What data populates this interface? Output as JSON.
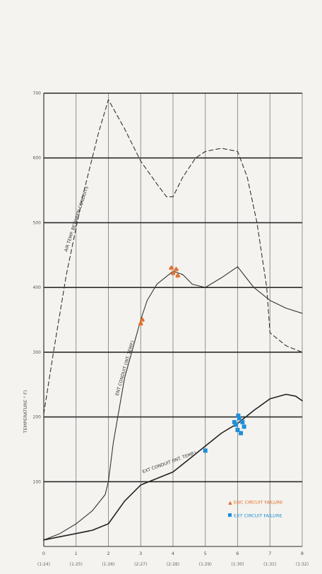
{
  "chart_data": {
    "type": "line",
    "ylabel": "TEMPERATURE ° F)",
    "ylim": [
      0,
      700
    ],
    "xlim": [
      0,
      8
    ],
    "grid": true,
    "y_ticks": [
      {
        "value": 0,
        "label": ""
      },
      {
        "value": 100,
        "label": "100"
      },
      {
        "value": 200,
        "label": "200"
      },
      {
        "value": 300,
        "label": "300"
      },
      {
        "value": 400,
        "label": "400"
      },
      {
        "value": 500,
        "label": "500"
      },
      {
        "value": 600,
        "label": "600"
      },
      {
        "value": 700,
        "label": "700"
      }
    ],
    "x_ticks": [
      {
        "value": 0,
        "top": "0",
        "bottom": "(1:24)"
      },
      {
        "value": 1,
        "top": "1",
        "bottom": "(1:25)"
      },
      {
        "value": 2,
        "top": "2",
        "bottom": "(1:26)"
      },
      {
        "value": 3,
        "top": "3",
        "bottom": "(2:27)"
      },
      {
        "value": 4,
        "top": "4",
        "bottom": "(2:28)"
      },
      {
        "value": 5,
        "top": "5",
        "bottom": "(1:29)"
      },
      {
        "value": 6,
        "top": "6",
        "bottom": "(1:30)"
      },
      {
        "value": 7,
        "top": "7",
        "bottom": "(1:31)"
      },
      {
        "value": 8,
        "top": "8",
        "bottom": "(1:32)"
      }
    ],
    "series": [
      {
        "name": "AIR TEMP. BETWEEN CONDUITS",
        "style": "dashed",
        "color": "#333333",
        "x": [
          0,
          0.3,
          0.7,
          1.2,
          1.7,
          2.0,
          2.5,
          3.0,
          3.5,
          3.8,
          4.0,
          4.3,
          4.7,
          5.0,
          5.5,
          6.0,
          6.3,
          6.6,
          6.9,
          7.0,
          7.5,
          8.0
        ],
        "y": [
          205,
          300,
          420,
          540,
          640,
          690,
          645,
          595,
          560,
          540,
          540,
          570,
          600,
          610,
          615,
          610,
          570,
          500,
          400,
          330,
          310,
          300
        ]
      },
      {
        "name": "ENT CONDUIT (INT. TEMP.)",
        "style": "solid",
        "color": "#333333",
        "x": [
          0,
          0.5,
          1.0,
          1.5,
          1.9,
          2.0,
          2.15,
          2.5,
          3.0,
          3.2,
          3.5,
          4.0,
          4.3,
          4.6,
          5.0,
          5.5,
          6.0,
          6.5,
          7.0,
          7.5,
          8.0
        ],
        "y": [
          10,
          20,
          35,
          55,
          80,
          100,
          160,
          260,
          350,
          380,
          405,
          425,
          420,
          405,
          400,
          415,
          432,
          400,
          380,
          368,
          360
        ]
      },
      {
        "name": "EXT CONDUIT (INT. TEMP.)",
        "style": "solid",
        "color": "#222222",
        "x": [
          0,
          0.5,
          1.0,
          1.5,
          2.0,
          2.5,
          3.0,
          3.5,
          4.0,
          4.5,
          5.0,
          5.5,
          6.0,
          6.5,
          7.0,
          7.5,
          7.8,
          8.0
        ],
        "y": [
          10,
          15,
          20,
          25,
          35,
          70,
          95,
          105,
          115,
          135,
          155,
          175,
          190,
          210,
          228,
          235,
          232,
          225
        ]
      }
    ],
    "failure_markers": [
      {
        "legend": "ENC CIRCUIT FAILURE",
        "color": "#e07030",
        "points": [
          {
            "x": 3.0,
            "y": 344
          },
          {
            "x": 3.05,
            "y": 350
          },
          {
            "x": 4.0,
            "y": 422
          },
          {
            "x": 4.1,
            "y": 428
          },
          {
            "x": 3.95,
            "y": 430
          },
          {
            "x": 4.15,
            "y": 418
          }
        ]
      },
      {
        "legend": "EXT CIRCUIT FAILURE",
        "color": "#1f8fd6",
        "points": [
          {
            "x": 5.0,
            "y": 148
          },
          {
            "x": 5.95,
            "y": 188
          },
          {
            "x": 6.05,
            "y": 198
          },
          {
            "x": 6.15,
            "y": 192
          },
          {
            "x": 6.0,
            "y": 180
          },
          {
            "x": 6.1,
            "y": 175
          },
          {
            "x": 6.2,
            "y": 185
          },
          {
            "x": 5.9,
            "y": 192
          },
          {
            "x": 6.02,
            "y": 202
          }
        ]
      }
    ]
  }
}
